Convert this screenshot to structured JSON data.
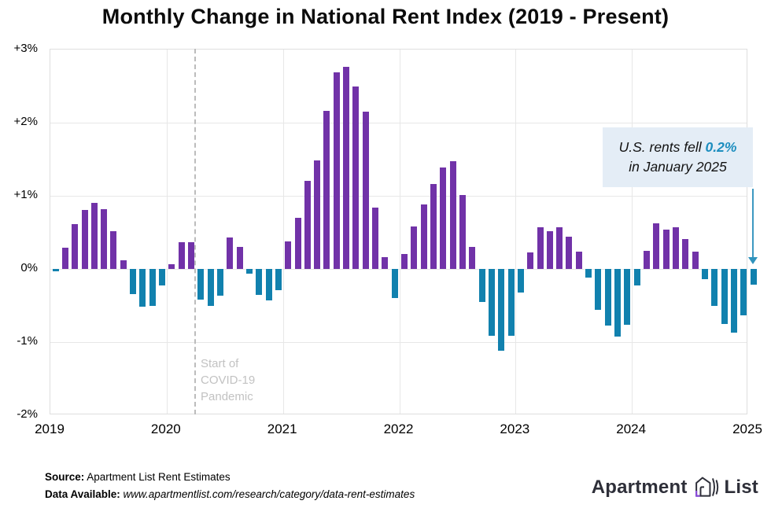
{
  "chart_data": {
    "type": "bar",
    "title": "Monthly Change in National Rent Index (2019 - Present)",
    "unit": "percent month-over-month change in national rent index",
    "x_axis": {
      "tick_labels": [
        "2019",
        "2020",
        "2021",
        "2022",
        "2023",
        "2024",
        "2025"
      ]
    },
    "y_axis": {
      "tick_labels": [
        "+3%",
        "+2%",
        "+1%",
        "0%",
        "-1%",
        "-2%"
      ],
      "min": -2,
      "max": 3
    },
    "grid": true,
    "legend": "none",
    "colors": {
      "positive_bar": "#7132a8",
      "negative_bar": "#1181ae"
    },
    "series": [
      {
        "year": "2019",
        "monthly_values": [
          -0.03,
          0.29,
          0.61,
          0.81,
          0.9,
          0.82,
          0.52,
          0.12,
          -0.34,
          -0.52,
          -0.51,
          -0.22
        ]
      },
      {
        "year": "2020",
        "monthly_values": [
          0.06,
          0.37,
          0.37,
          -0.42,
          -0.5,
          -0.37,
          0.43,
          0.3,
          -0.06,
          -0.35,
          -0.43,
          -0.29
        ]
      },
      {
        "year": "2021",
        "monthly_values": [
          0.38,
          0.7,
          1.2,
          1.48,
          2.16,
          2.69,
          2.76,
          2.5,
          2.15,
          0.84,
          0.16,
          -0.4
        ]
      },
      {
        "year": "2022",
        "monthly_values": [
          0.21,
          0.58,
          0.88,
          1.16,
          1.39,
          1.47,
          1.01,
          0.3,
          -0.45,
          -0.91,
          -1.12,
          -0.91
        ]
      },
      {
        "year": "2023",
        "monthly_values": [
          -0.32,
          0.23,
          0.57,
          0.52,
          0.57,
          0.44,
          0.24,
          -0.12,
          -0.56,
          -0.77,
          -0.92,
          -0.76
        ]
      },
      {
        "year": "2024",
        "monthly_values": [
          -0.23,
          0.25,
          0.62,
          0.54,
          0.57,
          0.41,
          0.24,
          -0.14,
          -0.51,
          -0.75,
          -0.87,
          -0.63
        ]
      },
      {
        "year": "2025",
        "monthly_values": [
          -0.21
        ]
      }
    ],
    "covid_marker": {
      "month_index": 14.9,
      "label_lines": [
        "Start of",
        "COVID-19",
        "Pandemic"
      ]
    }
  },
  "annotation": {
    "text_prefix": "U.S. rents fell ",
    "highlight": "0.2%",
    "text_line2": "in January 2025",
    "highlight_color": "#1d8ebf",
    "box_color": "#e4edf6"
  },
  "footer": {
    "source_label": "Source:",
    "source_value": " Apartment List Rent Estimates",
    "data_label": "Data Available:",
    "data_value": " www.apartmentlist.com/research/category/data-rent-estimates"
  },
  "logo": {
    "word1": "Apartment",
    "word2": "List"
  }
}
